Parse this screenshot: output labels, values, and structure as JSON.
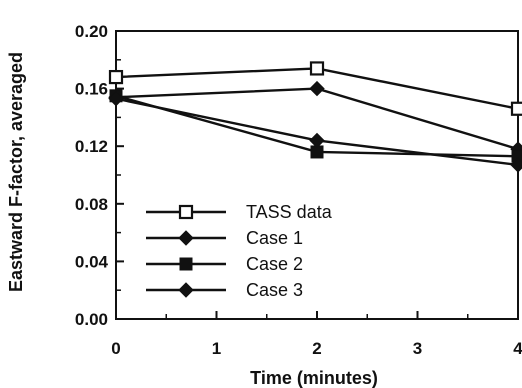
{
  "chart_data": {
    "type": "line",
    "xlabel": "Time (minutes)",
    "ylabel": "Eastward F-factor, averaged",
    "xlim": [
      0,
      4
    ],
    "ylim": [
      0,
      0.2
    ],
    "x_ticks": [
      {
        "value": 0,
        "label": "0"
      },
      {
        "value": 1,
        "label": "1"
      },
      {
        "value": 2,
        "label": "2"
      },
      {
        "value": 3,
        "label": "3"
      },
      {
        "value": 4,
        "label": "4"
      }
    ],
    "y_ticks": [
      {
        "value": 0,
        "label": "0.00"
      },
      {
        "value": 0.04,
        "label": "0.04"
      },
      {
        "value": 0.08,
        "label": "0.08"
      },
      {
        "value": 0.12,
        "label": "0.12"
      },
      {
        "value": 0.16,
        "label": "0.16"
      },
      {
        "value": 0.2,
        "label": "0.20"
      }
    ],
    "grid": false,
    "legend_position": "bottom-left",
    "series": [
      {
        "name": "TASS data",
        "marker": "open-square",
        "x": [
          0,
          2,
          4
        ],
        "y": [
          0.168,
          0.174,
          0.146
        ]
      },
      {
        "name": "Case 1",
        "marker": "filled-diamond",
        "x": [
          0,
          2,
          4
        ],
        "y": [
          0.154,
          0.16,
          0.118
        ]
      },
      {
        "name": "Case 2",
        "marker": "filled-square",
        "x": [
          0,
          2,
          4
        ],
        "y": [
          0.155,
          0.116,
          0.113
        ]
      },
      {
        "name": "Case 3",
        "marker": "filled-diamond",
        "x": [
          0,
          2,
          4
        ],
        "y": [
          0.153,
          0.124,
          0.107
        ]
      }
    ],
    "color": "#111111"
  }
}
